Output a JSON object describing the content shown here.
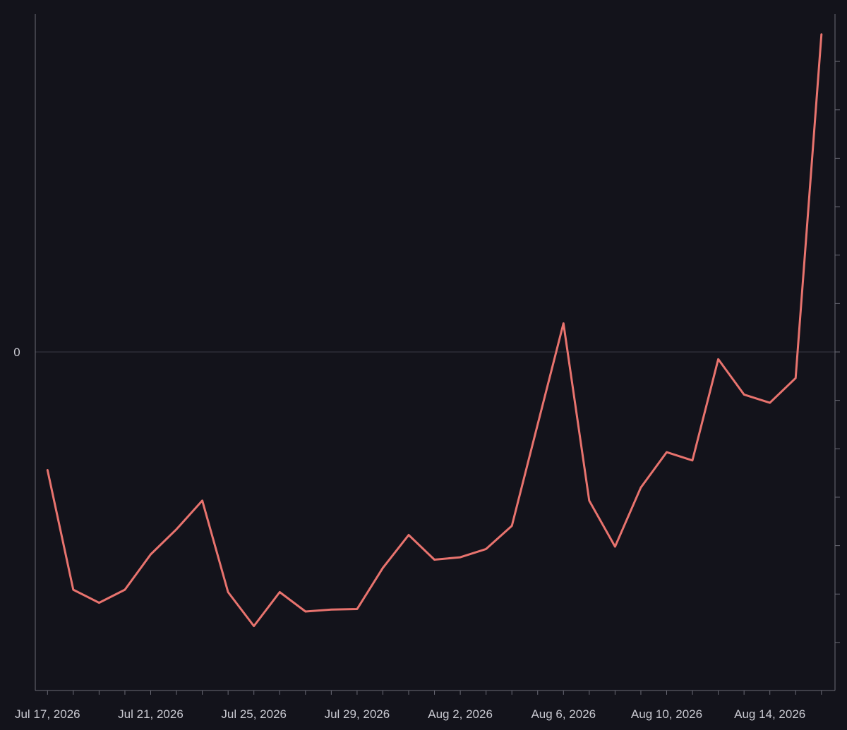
{
  "chart_data": {
    "type": "line",
    "title": "",
    "xlabel": "",
    "ylabel": "",
    "x_tick_labels": [
      "Jul 17, 2026",
      "Jul 21, 2026",
      "Jul 25, 2026",
      "Jul 29, 2026",
      "Aug 2, 2026",
      "Aug 6, 2026",
      "Aug 10, 2026",
      "Aug 14, 2026"
    ],
    "y_tick_labels": [
      "0"
    ],
    "grid": false,
    "legend": "none",
    "x": [
      "2026-07-17",
      "2026-07-18",
      "2026-07-19",
      "2026-07-20",
      "2026-07-21",
      "2026-07-22",
      "2026-07-23",
      "2026-07-24",
      "2026-07-25",
      "2026-07-26",
      "2026-07-27",
      "2026-07-28",
      "2026-07-29",
      "2026-07-30",
      "2026-07-31",
      "2026-08-01",
      "2026-08-02",
      "2026-08-03",
      "2026-08-04",
      "2026-08-05",
      "2026-08-06",
      "2026-08-07",
      "2026-08-08",
      "2026-08-09",
      "2026-08-10",
      "2026-08-11",
      "2026-08-12",
      "2026-08-13",
      "2026-08-14",
      "2026-08-15",
      "2026-08-16"
    ],
    "series": [
      {
        "color": "#e8736e",
        "values": [
          -2.44,
          -4.91,
          -5.18,
          -4.91,
          -4.18,
          -3.66,
          -3.07,
          -4.96,
          -5.66,
          -4.96,
          -5.36,
          -5.32,
          -5.31,
          -4.46,
          -3.78,
          -4.29,
          -4.24,
          -4.07,
          -3.59,
          -1.5,
          0.59,
          -3.07,
          -4.02,
          -2.8,
          -2.07,
          -2.24,
          -0.15,
          -0.88,
          -1.05,
          -0.54,
          6.56
        ]
      }
    ],
    "ylim": [
      -7.0,
      7.0
    ]
  }
}
